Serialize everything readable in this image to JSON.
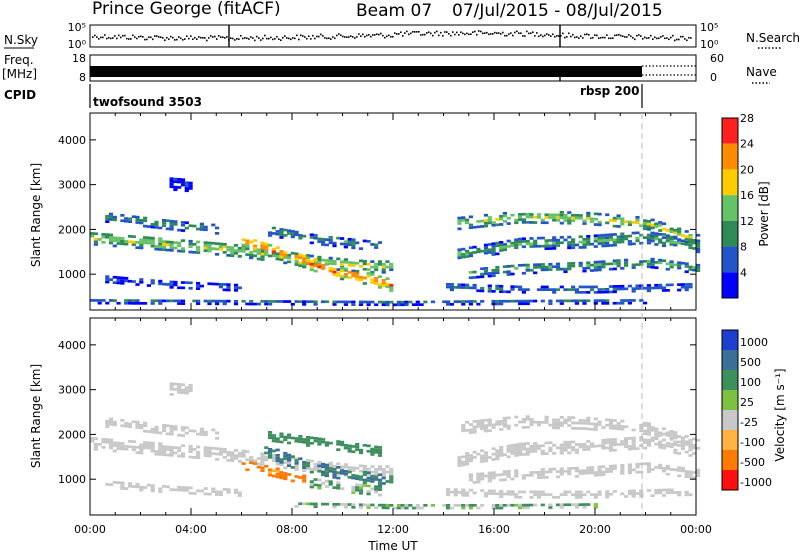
{
  "header": {
    "station": "Prince George (fitACF)",
    "beam": "Beam 07",
    "dates": "07/Jul/2015 - 08/Jul/2015"
  },
  "side_labels": {
    "nsky": "N.Sky",
    "freq_line1": "Freq.",
    "freq_line2": "[MHz]",
    "cpid": "CPID",
    "nsearch": "N.Search",
    "nave": "Nave"
  },
  "noise_panel": {
    "yticks": [
      "10^5",
      "10^0"
    ],
    "yticks_right": [
      "10^5",
      "10^0"
    ]
  },
  "freq_panel": {
    "yticks": [
      "18",
      "8"
    ],
    "yticks_right": [
      "60",
      "0"
    ]
  },
  "cpid_panel": {
    "programs": [
      "twofsound 3503",
      "rbsp 200"
    ],
    "switch_hour": 22.0
  },
  "chart_data": [
    {
      "type": "heatmap",
      "title": "Power",
      "xlabel": "",
      "ylabel": "Slant Range [km]",
      "xlim": [
        0,
        24
      ],
      "ylim": [
        200,
        4600
      ],
      "yticks": [
        1000,
        2000,
        3000,
        4000
      ],
      "colorbar": {
        "label": "Power [dB]",
        "ticks": [
          4,
          8,
          12,
          16,
          20,
          24,
          28
        ],
        "colors": [
          "#0000ff",
          "#2255c8",
          "#2e8b57",
          "#66c266",
          "#ffcc00",
          "#ff8c00",
          "#ff2020"
        ]
      },
      "bands": [
        {
          "t": [
            0.0,
            3.0,
            6.0,
            9.0,
            11.0,
            12.0
          ],
          "r": [
            1780,
            1650,
            1500,
            1250,
            1150,
            1150
          ],
          "w": 280,
          "p": 18
        },
        {
          "t": [
            0.5,
            2.0,
            3.5,
            5.0
          ],
          "r": [
            2250,
            2150,
            2050,
            1980
          ],
          "w": 200,
          "p": 12
        },
        {
          "t": [
            6.0,
            8.0,
            9.5,
            11.0,
            12.0
          ],
          "r": [
            1700,
            1350,
            1050,
            880,
            720
          ],
          "w": 280,
          "p": 26
        },
        {
          "t": [
            7.0,
            9.0,
            11.5
          ],
          "r": [
            1950,
            1750,
            1600
          ],
          "w": 220,
          "p": 12
        },
        {
          "t": [
            0.5,
            3.0,
            6.0
          ],
          "r": [
            880,
            760,
            680
          ],
          "w": 160,
          "p": 8
        },
        {
          "t": [
            3.0,
            4.0
          ],
          "r": [
            3000,
            2950
          ],
          "w": 260,
          "p": 6
        },
        {
          "t": [
            14.5,
            17.0,
            19.5,
            22.0,
            24.0
          ],
          "r": [
            2100,
            2250,
            2220,
            2100,
            1720
          ],
          "w": 240,
          "p": 18
        },
        {
          "t": [
            14.5,
            17.0,
            19.5,
            22.0,
            24.0
          ],
          "r": [
            1400,
            1650,
            1700,
            1800,
            1600
          ],
          "w": 260,
          "p": 14
        },
        {
          "t": [
            15.0,
            17.0,
            19.5,
            22.0,
            24.0
          ],
          "r": [
            1000,
            1100,
            1150,
            1250,
            1100
          ],
          "w": 220,
          "p": 13
        },
        {
          "t": [
            14.0,
            17.0,
            20.0,
            23.8
          ],
          "r": [
            700,
            640,
            640,
            700
          ],
          "w": 150,
          "p": 10
        },
        {
          "t": [
            0.0,
            6.0,
            12.0,
            16.0,
            22.0
          ],
          "r": [
            380,
            360,
            340,
            360,
            380
          ],
          "w": 110,
          "p": 9
        }
      ]
    },
    {
      "type": "heatmap",
      "title": "Velocity",
      "xlabel": "Time UT",
      "ylabel": "Slant Range [km]",
      "xlim": [
        0,
        24
      ],
      "ylim": [
        200,
        4600
      ],
      "xticks": [
        "00:00",
        "04:00",
        "08:00",
        "12:00",
        "16:00",
        "20:00",
        "00:00"
      ],
      "yticks": [
        1000,
        2000,
        3000,
        4000
      ],
      "colorbar": {
        "label": "Velocity [m s^-1]",
        "ticks": [
          1000,
          500,
          100,
          25,
          -25,
          -100,
          -500,
          -1000
        ],
        "colors": [
          "#1c3fd0",
          "#3a6f9a",
          "#3e8f5e",
          "#7cc240",
          "#c8c8c8",
          "#ffb340",
          "#ff7a00",
          "#ff1010"
        ]
      },
      "bands": [
        {
          "t": [
            0.0,
            3.0,
            6.0,
            9.0,
            11.0,
            12.0
          ],
          "r": [
            1780,
            1650,
            1500,
            1250,
            1150,
            1150
          ],
          "w": 280,
          "v": 0
        },
        {
          "t": [
            0.5,
            2.0,
            3.5,
            5.0
          ],
          "r": [
            2250,
            2150,
            2050,
            1980
          ],
          "w": 200,
          "v": 0
        },
        {
          "t": [
            6.8,
            8.0,
            9.5,
            11.0,
            12.0
          ],
          "r": [
            1650,
            1350,
            1150,
            1000,
            900
          ],
          "w": 260,
          "v": 300
        },
        {
          "t": [
            7.0,
            9.0,
            11.5
          ],
          "r": [
            1950,
            1800,
            1600
          ],
          "w": 220,
          "v": 200
        },
        {
          "t": [
            6.0,
            7.5,
            8.5
          ],
          "r": [
            1300,
            1100,
            950
          ],
          "w": 200,
          "v": -350
        },
        {
          "t": [
            8.5,
            10.0,
            11.5
          ],
          "r": [
            900,
            780,
            700
          ],
          "w": 180,
          "v": 60
        },
        {
          "t": [
            0.5,
            3.0,
            6.0
          ],
          "r": [
            880,
            760,
            680
          ],
          "w": 160,
          "v": 0
        },
        {
          "t": [
            3.0,
            4.0
          ],
          "r": [
            3000,
            2950
          ],
          "w": 260,
          "v": 0
        },
        {
          "t": [
            14.5,
            17.0,
            19.5,
            22.0,
            24.0
          ],
          "r": [
            2100,
            2250,
            2220,
            2100,
            1720
          ],
          "w": 240,
          "v": 0
        },
        {
          "t": [
            14.5,
            17.0,
            19.5,
            22.0,
            24.0
          ],
          "r": [
            1400,
            1650,
            1700,
            1800,
            1600
          ],
          "w": 260,
          "v": 0
        },
        {
          "t": [
            15.0,
            17.0,
            19.5,
            22.0,
            24.0
          ],
          "r": [
            1000,
            1100,
            1150,
            1250,
            1100
          ],
          "w": 220,
          "v": 0
        },
        {
          "t": [
            14.0,
            17.0,
            20.0,
            23.8
          ],
          "r": [
            700,
            640,
            640,
            700
          ],
          "w": 150,
          "v": 0
        },
        {
          "t": [
            8.0,
            12.0,
            16.0,
            20.0
          ],
          "r": [
            420,
            380,
            380,
            400
          ],
          "w": 110,
          "v": 60
        }
      ]
    }
  ]
}
